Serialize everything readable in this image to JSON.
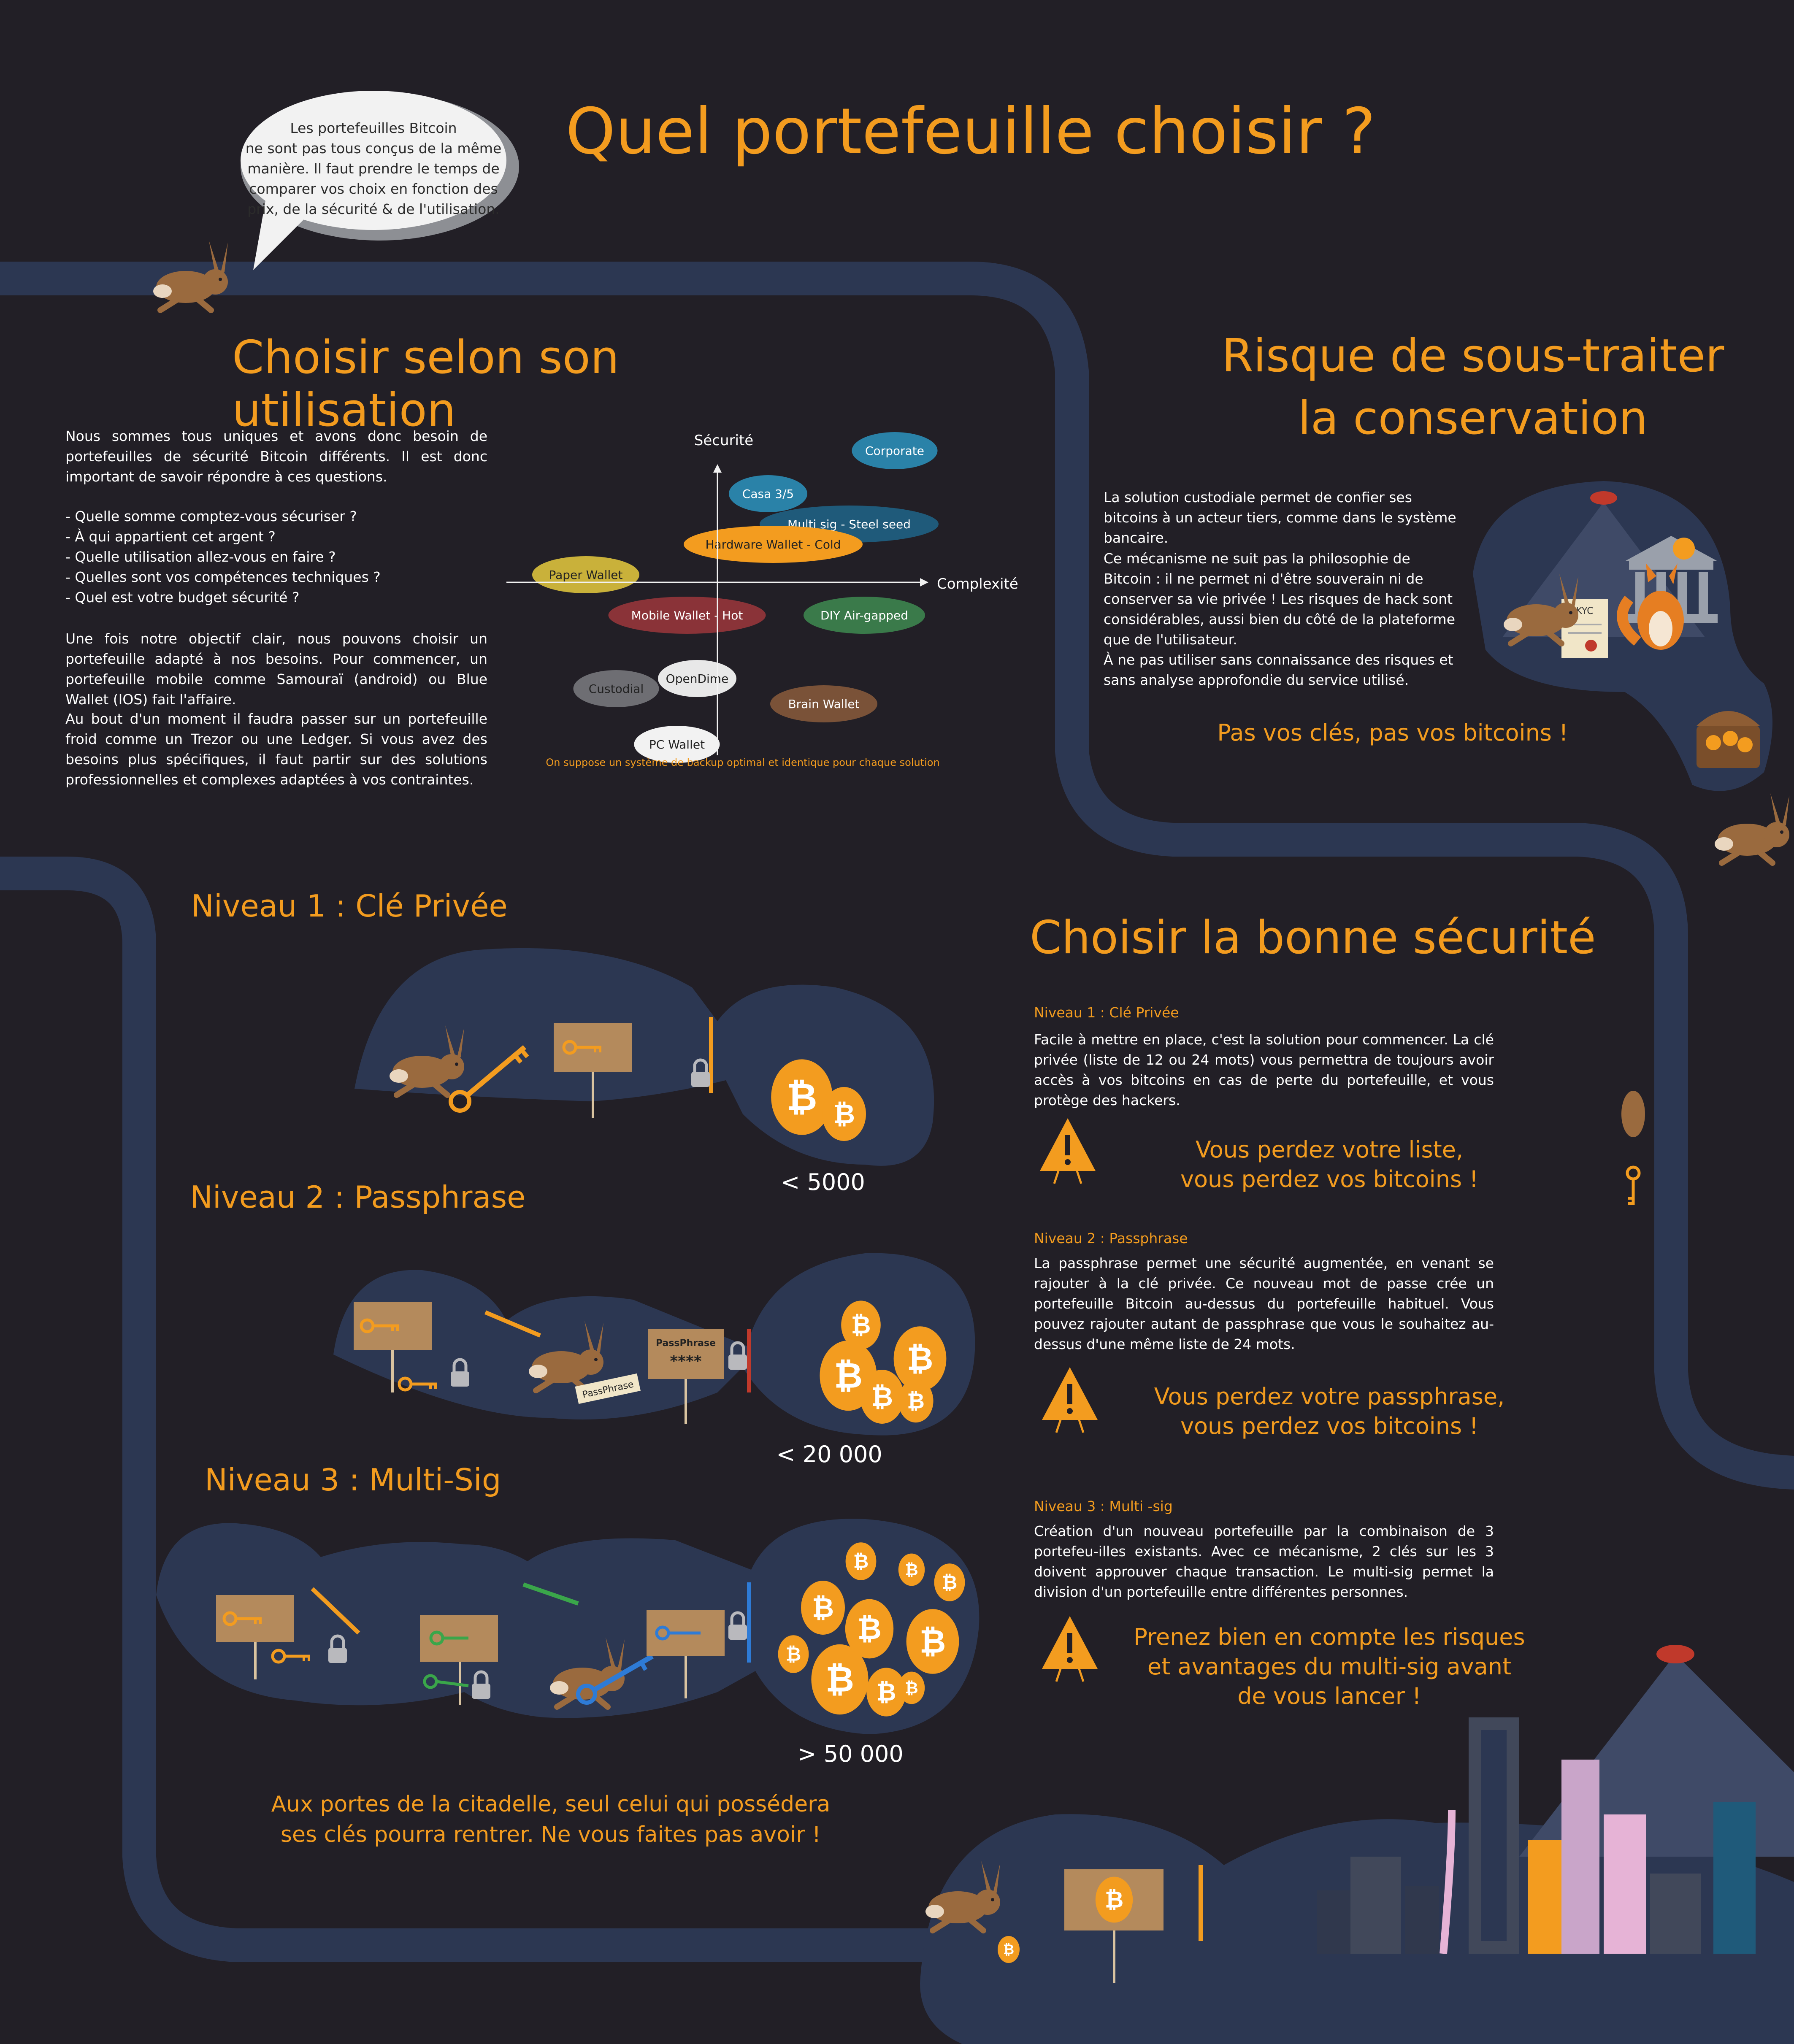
{
  "title": "Quel portefeuille choisir ?",
  "bubble": "Les portefeuilles Bitcoin\nne sont pas tous conçus de la même manière. Il faut prendre le temps de comparer vos choix en fonction des prix, de la sécurité & de l'utilisation.",
  "usage": {
    "heading": "Choisir selon son utilisation",
    "p1": "Nous sommes tous uniques et avons donc besoin de portefeuilles de sécurité Bitcoin différents. Il est donc important de savoir répondre à ces questions.",
    "questions": [
      "- Quelle somme comptez-vous sécuriser ?",
      "- À qui appartient cet argent ?",
      "- Quelle utilisation allez-vous en faire ?",
      "- Quelles sont vos compétences techniques ?",
      "- Quel est votre budget sécurité ?"
    ],
    "p2": "Une fois notre objectif clair, nous pouvons choisir un portefeuille adapté à nos besoins. Pour commencer, un portefeuille mobile comme Samouraï (android) ou Blue Wallet (IOS) fait l'affaire.",
    "p3": "Au bout d'un moment il faudra passer sur un portefeuille froid comme un Trezor ou une Ledger. Si vous avez des besoins plus spécifiques, il faut partir sur des solutions professionnelles et complexes adaptées à vos contraintes."
  },
  "chart_data": {
    "type": "scatter",
    "xlabel": "Complexité",
    "ylabel": "Sécurité",
    "note": "On suppose un système de backup optimal et identique pour chaque solution",
    "points": [
      {
        "label": "Corporate",
        "x": 3.5,
        "y": 2.6,
        "color": "#2a82a8"
      },
      {
        "label": "Casa 3/5",
        "x": 1.0,
        "y": 1.75,
        "color": "#2a82a8"
      },
      {
        "label": "Multi sig - Steel seed",
        "x": 2.6,
        "y": 1.15,
        "color": "#1f5a7a"
      },
      {
        "label": "Hardware Wallet - Cold",
        "x": 1.1,
        "y": 0.75,
        "color": "#f39c1f"
      },
      {
        "label": "Paper Wallet",
        "x": -2.6,
        "y": 0.15,
        "color": "#c9b13a"
      },
      {
        "label": "Mobile Wallet - Hot",
        "x": -0.6,
        "y": -0.65,
        "color": "#8a3338"
      },
      {
        "label": "DIY Air-gapped",
        "x": 2.9,
        "y": -0.65,
        "color": "#3a7a4a"
      },
      {
        "label": "Custodial",
        "x": -2.0,
        "y": -2.1,
        "color": "#6e6e73"
      },
      {
        "label": "OpenDime",
        "x": -0.4,
        "y": -1.9,
        "color": "#e8e8e8"
      },
      {
        "label": "Brain Wallet",
        "x": 2.1,
        "y": -2.4,
        "color": "#7a5238"
      },
      {
        "label": "PC Wallet",
        "x": -0.8,
        "y": -3.2,
        "color": "#f2f2f2"
      }
    ]
  },
  "risk": {
    "heading_line1": "Risque de sous-traiter",
    "heading_line2": "la conservation",
    "p1": "La solution custodiale permet de confier ses bitcoins à un acteur tiers,  comme dans le système bancaire.",
    "p2": "Ce mécanisme ne suit pas la philosophie de Bitcoin : il ne permet ni d'être souverain ni de conserver sa vie privée !  Les risques de hack sont considérables, aussi bien du côté de la plateforme que de l'utilisateur.",
    "p3": "À ne pas utiliser sans connaissance des risques et sans analyse approfondie du service utilisé.",
    "slogan": "Pas vos clés, pas vos bitcoins !",
    "kyc": "KYC"
  },
  "levels": {
    "n1_title": "Niveau 1 : Clé Privée",
    "n1_amount": "< 5000",
    "n2_title": "Niveau 2 : Passphrase",
    "n2_amount": "< 20 000",
    "n2_sign": "PassPhrase",
    "n2_stars": "****",
    "n2_ticket": "PassPhrase",
    "n3_title": "Niveau 3 : Multi-Sig",
    "n3_amount": "> 50 000",
    "footer": "Aux portes de la citadelle, seul celui qui possédera ses clés pourra rentrer. Ne vous faites pas avoir !"
  },
  "security": {
    "heading": "Choisir la bonne sécurité",
    "l1_label": "Niveau 1 : Clé Privée",
    "l1_text": "Facile à mettre en place, c'est la solution pour commencer. La clé privée (liste de 12 ou 24 mots) vous permettra de toujours avoir accès à vos bitcoins en cas de perte du portefeuille, et vous protège des hackers.",
    "w1": "Vous perdez votre liste,\nvous perdez vos bitcoins !",
    "l2_label": "Niveau 2 : Passphrase",
    "l2_text": "La passphrase permet une sécurité augmentée, en venant se rajouter à la clé privée. Ce nouveau mot de passe crée un portefeuille Bitcoin au-dessus du portefeuille habituel. Vous pouvez rajouter autant de passphrase que vous le souhaitez au-dessus d'une même liste de 24 mots.",
    "w2": "Vous perdez votre passphrase,\nvous perdez vos bitcoins !",
    "l3_label": "Niveau 3 : Multi -sig",
    "l3_text": "Création d'un nouveau portefeuille par la combinaison de 3 portefeu-illes existants. Avec ce mécanisme, 2 clés sur les 3 doivent approuver chaque transaction. Le multi-sig permet la division d'un portefeuille entre différentes personnes.",
    "w3": "Prenez bien en compte les risques\net avantages du multi-sig avant\nde vous lancer !"
  },
  "colors": {
    "background": "#221f26",
    "tunnel": "#2c3752",
    "accent": "#f39c1f",
    "egg": "#f39c1f"
  },
  "icons": [
    "rabbit-icon",
    "fox-icon",
    "key-icon",
    "padlock-icon",
    "bitcoin-egg-icon",
    "warning-icon",
    "bank-icon",
    "treasure-chest-icon",
    "lamp-icon",
    "city-skyline"
  ]
}
